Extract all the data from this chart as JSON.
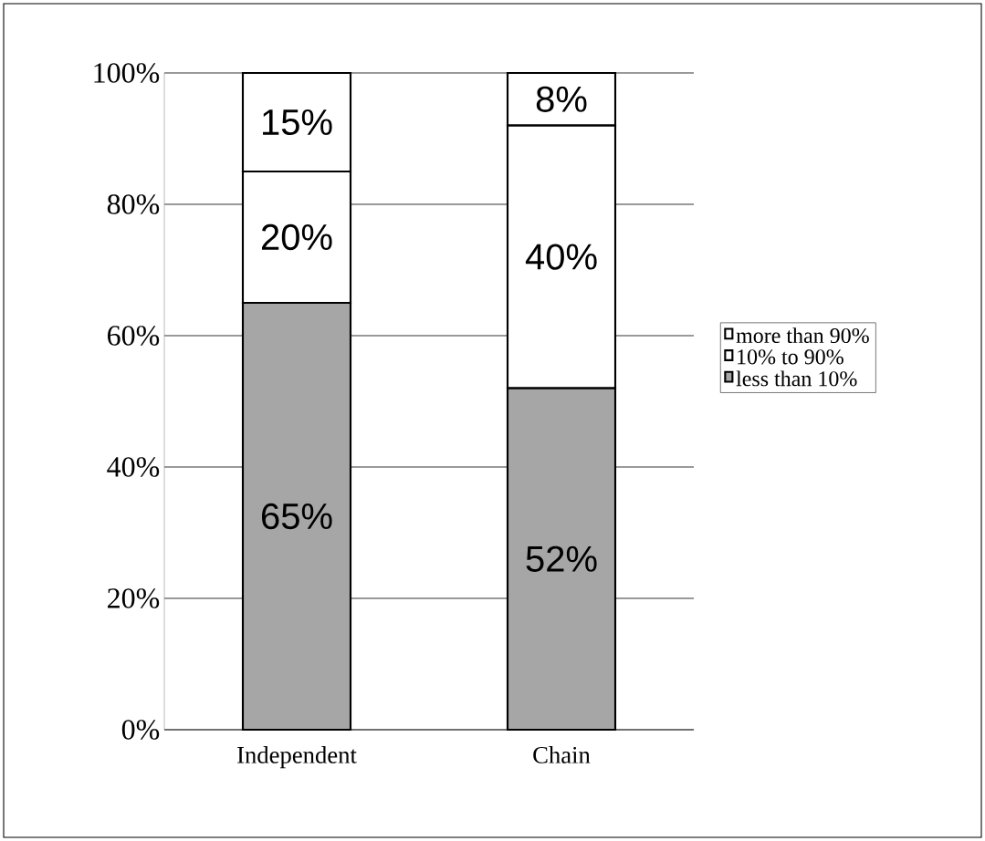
{
  "chart_data": {
    "type": "bar",
    "stacked": true,
    "categories": [
      "Independent",
      "Chain"
    ],
    "series": [
      {
        "name": "less than 10%",
        "color": "#a6a6a6",
        "values": [
          65,
          52
        ],
        "value_labels": [
          "65%",
          "52%"
        ]
      },
      {
        "name": "10% to 90%",
        "color": "#ffffff",
        "values": [
          20,
          40
        ],
        "value_labels": [
          "20%",
          "40%"
        ]
      },
      {
        "name": "more than 90%",
        "color": "#ffffff",
        "values": [
          15,
          8
        ],
        "value_labels": [
          "15%",
          "8%"
        ]
      }
    ],
    "ylim": [
      0,
      100
    ],
    "yticks": [
      {
        "value": 0,
        "label": "0%"
      },
      {
        "value": 20,
        "label": "20%"
      },
      {
        "value": 40,
        "label": "40%"
      },
      {
        "value": 60,
        "label": "60%"
      },
      {
        "value": 80,
        "label": "80%"
      },
      {
        "value": 100,
        "label": "100%"
      }
    ],
    "grid": "y",
    "legend": "right"
  }
}
